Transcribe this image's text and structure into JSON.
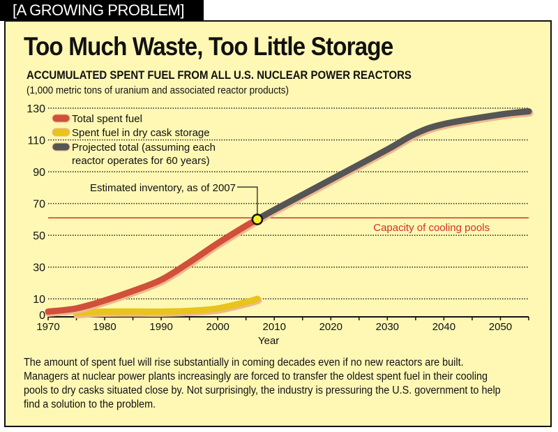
{
  "header_tab": "[A GROWING PROBLEM]",
  "title": "Too Much Waste, Too Little Storage",
  "caption": "The amount of spent fuel will rise substantially in coming decades even if no new reactors are built. Managers at nuclear power plants increasingly are forced to transfer the oldest spent fuel in their cooling pools to dry casks situated close by. Not surprisingly, the industry is pressuring the U.S. government to help find a solution to the problem.",
  "chart_data": {
    "type": "line",
    "title": "ACCUMULATED SPENT FUEL FROM ALL U.S. NUCLEAR POWER REACTORS",
    "subtitle": "(1,000 metric tons of uranium and associated reactor products)",
    "xlabel": "Year",
    "ylabel": "",
    "xlim": [
      1970,
      2055
    ],
    "ylim": [
      0,
      130
    ],
    "xticks": [
      1970,
      1980,
      1990,
      2000,
      2010,
      2020,
      2030,
      2040,
      2050
    ],
    "yticks": [
      0,
      10,
      30,
      50,
      70,
      90,
      110,
      130
    ],
    "grid": "horizontal dotted",
    "legend_position": "top-left",
    "series": [
      {
        "name": "Total spent fuel",
        "color": "#d0503a",
        "x": [
          1970,
          1975,
          1980,
          1985,
          1990,
          1995,
          2000,
          2005,
          2007
        ],
        "y": [
          2,
          4,
          9,
          15,
          22,
          33,
          45,
          56,
          60
        ]
      },
      {
        "name": "Spent fuel in dry cask storage",
        "color": "#e8c41c",
        "x": [
          1975,
          1980,
          1990,
          1995,
          2000,
          2005,
          2007
        ],
        "y": [
          1,
          2,
          2,
          2.5,
          4,
          8,
          10
        ]
      },
      {
        "name": "Projected total (assuming each reactor operates for 60 years)",
        "color": "#555555",
        "x": [
          2007,
          2010,
          2020,
          2030,
          2035,
          2040,
          2050,
          2055
        ],
        "y": [
          60,
          66,
          85,
          104,
          114,
          120,
          126,
          128
        ]
      }
    ],
    "reference_line": {
      "label": "Capacity of cooling pools",
      "y": 61,
      "color": "#d0302a"
    },
    "annotation": {
      "label": "Estimated inventory, as of 2007",
      "x": 2007,
      "y": 60
    }
  }
}
